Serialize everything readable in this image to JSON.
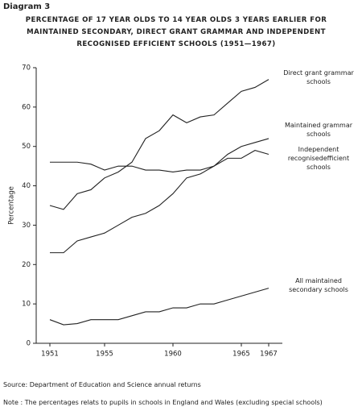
{
  "chart_data": {
    "type": "line",
    "label": "Diagram 3",
    "title": "PERCENTAGE OF 17 YEAR OLDS TO 14 YEAR OLDS 3 YEARS EARLIER FOR MAINTAINED SECONDARY, DIRECT GRANT GRAMMAR AND INDEPENDENT RECOGNISED EFFICIENT SCHOOLS (1951—1967)",
    "ylabel": "Percentage",
    "x": [
      1951,
      1952,
      1953,
      1954,
      1955,
      1956,
      1957,
      1958,
      1959,
      1960,
      1961,
      1962,
      1963,
      1964,
      1965,
      1966,
      1967
    ],
    "xlim": [
      1950,
      1968
    ],
    "xticks": [
      1951,
      1955,
      1960,
      1965,
      1967
    ],
    "ylim": [
      0,
      70
    ],
    "yticks": [
      0,
      10,
      20,
      30,
      40,
      50,
      60,
      70
    ],
    "series": [
      {
        "name": "Direct grant grammar schools",
        "color": "#222222",
        "values": [
          35,
          34,
          38,
          39,
          42,
          43.5,
          46,
          52,
          54,
          58,
          56,
          57.5,
          58,
          61,
          64,
          65,
          67
        ]
      },
      {
        "name": "Maintained grammar schools",
        "color": "#222222",
        "values": [
          23,
          23,
          26,
          27,
          28,
          30,
          32,
          33,
          35,
          38,
          42,
          43,
          45,
          48,
          50,
          51,
          52
        ]
      },
      {
        "name": "Independent recognisedefficient schools",
        "color": "#222222",
        "values": [
          46,
          46,
          46,
          45.5,
          44,
          45,
          45,
          44,
          44,
          43.5,
          44,
          44,
          45,
          47,
          47,
          49,
          48
        ]
      },
      {
        "name": "All maintained secondary schools",
        "color": "#222222",
        "values": [
          6,
          4.7,
          5,
          6,
          6,
          6,
          7,
          8,
          8,
          9,
          9,
          10,
          10,
          11,
          12,
          13,
          14
        ]
      }
    ],
    "source": "Source:  Department of Education and Science annual returns",
    "note": "Note  :  The percentages relats to pupils in schools in England and Wales (excluding special schools)"
  }
}
